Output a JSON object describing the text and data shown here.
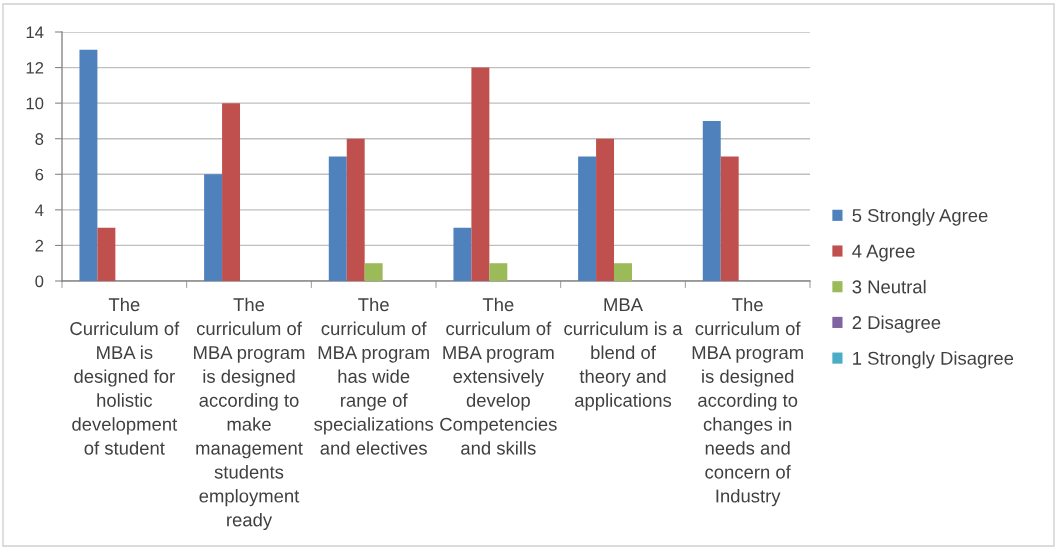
{
  "chart_data": {
    "type": "bar",
    "categories": [
      "The Curriculum of MBA is designed for holistic development of student",
      "The curriculum of MBA program is designed according to make management students employment ready",
      "The curriculum of MBA program has wide range of specializations and electives",
      "The curriculum of MBA program extensively develop Competencies and skills",
      "MBA curriculum is a blend of theory and applications",
      "The curriculum of MBA program is designed according to changes in needs and concern of Industry"
    ],
    "series": [
      {
        "name": "5 Strongly Agree",
        "color": "#4f81bd",
        "values": [
          13,
          6,
          7,
          3,
          7,
          9
        ]
      },
      {
        "name": "4 Agree",
        "color": "#c0504d",
        "values": [
          3,
          10,
          8,
          12,
          8,
          7
        ]
      },
      {
        "name": "3 Neutral",
        "color": "#9bbb59",
        "values": [
          0,
          0,
          1,
          1,
          1,
          0
        ]
      },
      {
        "name": "2 Disagree",
        "color": "#8064a2",
        "values": [
          0,
          0,
          0,
          0,
          0,
          0
        ]
      },
      {
        "name": "1 Strongly Disagree",
        "color": "#4bacc6",
        "values": [
          0,
          0,
          0,
          0,
          0,
          0
        ]
      }
    ],
    "ylim": [
      0,
      14
    ],
    "yticks": [
      0,
      2,
      4,
      6,
      8,
      10,
      12,
      14
    ],
    "grid": "y",
    "legend": "right"
  }
}
